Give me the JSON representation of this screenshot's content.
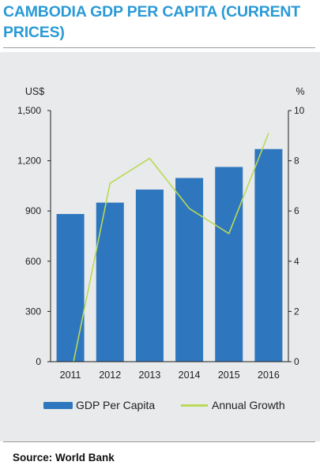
{
  "title": "CAMBODIA GDP PER CAPITA (CURRENT PRICES)",
  "source": "Source: World Bank",
  "colors": {
    "title": "#2a9ad6",
    "bar": "#2e77be",
    "line": "#b9d957",
    "panel": "#e8eaeb"
  },
  "chart_data": {
    "type": "bar",
    "title": "",
    "categories": [
      "2011",
      "2012",
      "2013",
      "2014",
      "2015",
      "2016"
    ],
    "series": [
      {
        "name": "GDP Per Capita",
        "type": "bar",
        "axis": "left",
        "values": [
          882,
          950,
          1028,
          1097,
          1163,
          1270
        ]
      },
      {
        "name": "Annual Growth",
        "type": "line",
        "axis": "right",
        "values": [
          0,
          7.1,
          8.1,
          6.1,
          5.1,
          9.1
        ]
      }
    ],
    "left_axis": {
      "unit_label": "US$",
      "ylim": [
        0,
        1500
      ],
      "ticks": [
        "0",
        "300",
        "600",
        "900",
        "1,200",
        "1,500"
      ]
    },
    "right_axis": {
      "unit_label": "%",
      "ylim": [
        0,
        10
      ],
      "ticks": [
        "0",
        "2",
        "4",
        "6",
        "8",
        "10"
      ]
    },
    "grid": false,
    "legend_position": "bottom"
  }
}
